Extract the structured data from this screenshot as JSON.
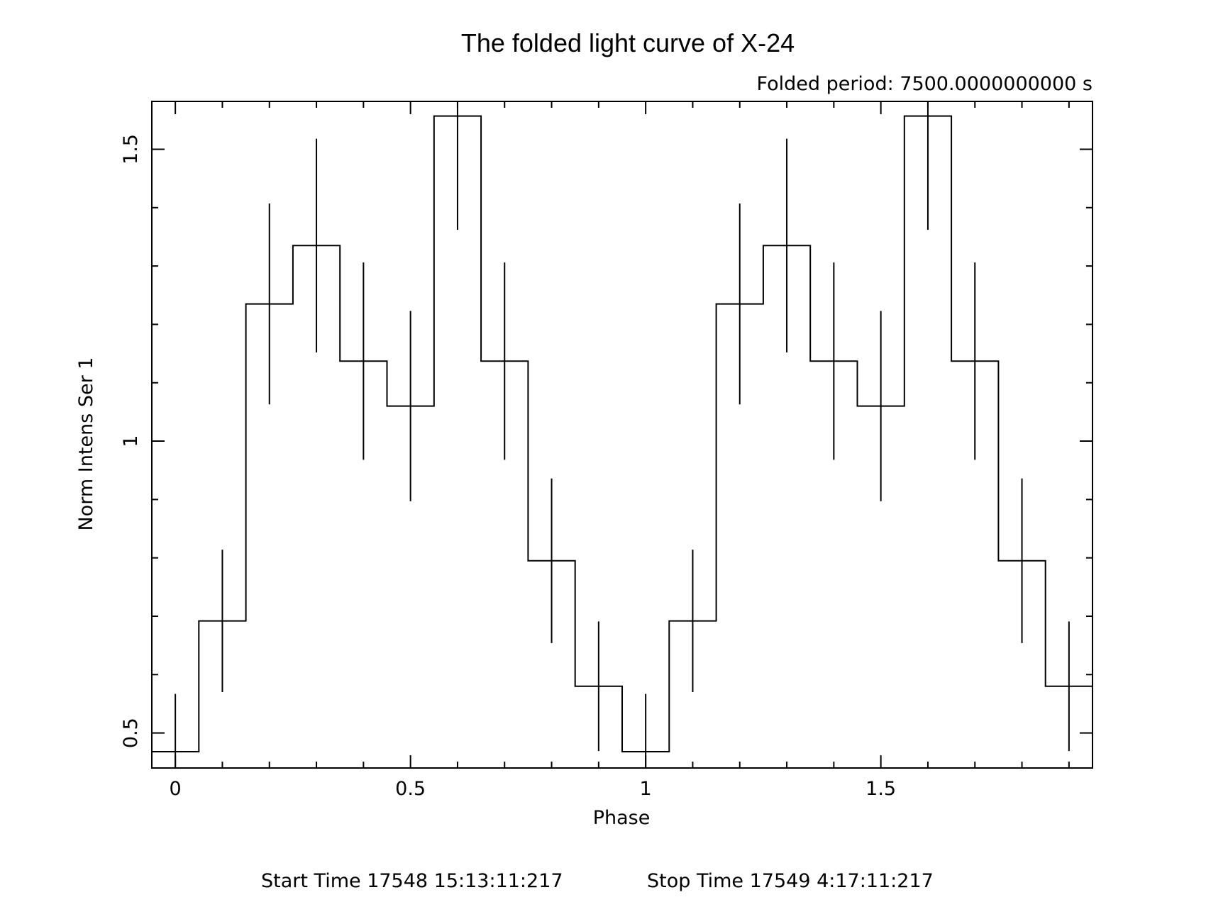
{
  "chart_data": {
    "type": "line",
    "style": "step-with-error-bars",
    "title": "The folded light curve of X-24",
    "subtitle": "Folded period: 7500.0000000000 s",
    "xlabel": "Phase",
    "ylabel": "Norm Intens Ser  1",
    "footer": {
      "start": "Start Time 17548 15:13:11:217",
      "stop": "Stop Time 17549  4:17:11:217"
    },
    "xlim": [
      -0.05,
      1.95
    ],
    "ylim": [
      0.44,
      1.582
    ],
    "x_ticks": [
      {
        "value": 0,
        "label": "0"
      },
      {
        "value": 0.5,
        "label": "0.5"
      },
      {
        "value": 1,
        "label": "1"
      },
      {
        "value": 1.5,
        "label": "1.5"
      }
    ],
    "y_ticks": [
      {
        "value": 0.5,
        "label": "0.5"
      },
      {
        "value": 1,
        "label": "1"
      },
      {
        "value": 1.5,
        "label": "1.5"
      }
    ],
    "x_minor_step": 0.1,
    "y_minor_step": 0.1,
    "bin_width": 0.1,
    "x": [
      0.0,
      0.1,
      0.2,
      0.3,
      0.4,
      0.5,
      0.6,
      0.7,
      0.8,
      0.9,
      1.0,
      1.1,
      1.2,
      1.3,
      1.4,
      1.5,
      1.6,
      1.7,
      1.8,
      1.9
    ],
    "y": [
      0.468,
      0.692,
      1.235,
      1.335,
      1.137,
      1.06,
      1.557,
      1.137,
      0.795,
      0.58,
      0.468,
      0.692,
      1.235,
      1.335,
      1.137,
      1.06,
      1.557,
      1.137,
      0.795,
      0.58
    ],
    "yerr": [
      0.099,
      0.122,
      0.172,
      0.183,
      0.169,
      0.163,
      0.195,
      0.169,
      0.141,
      0.111,
      0.099,
      0.122,
      0.172,
      0.183,
      0.169,
      0.163,
      0.195,
      0.169,
      0.141,
      0.111
    ],
    "colors": {
      "line": "#000000",
      "background": "#ffffff"
    }
  }
}
